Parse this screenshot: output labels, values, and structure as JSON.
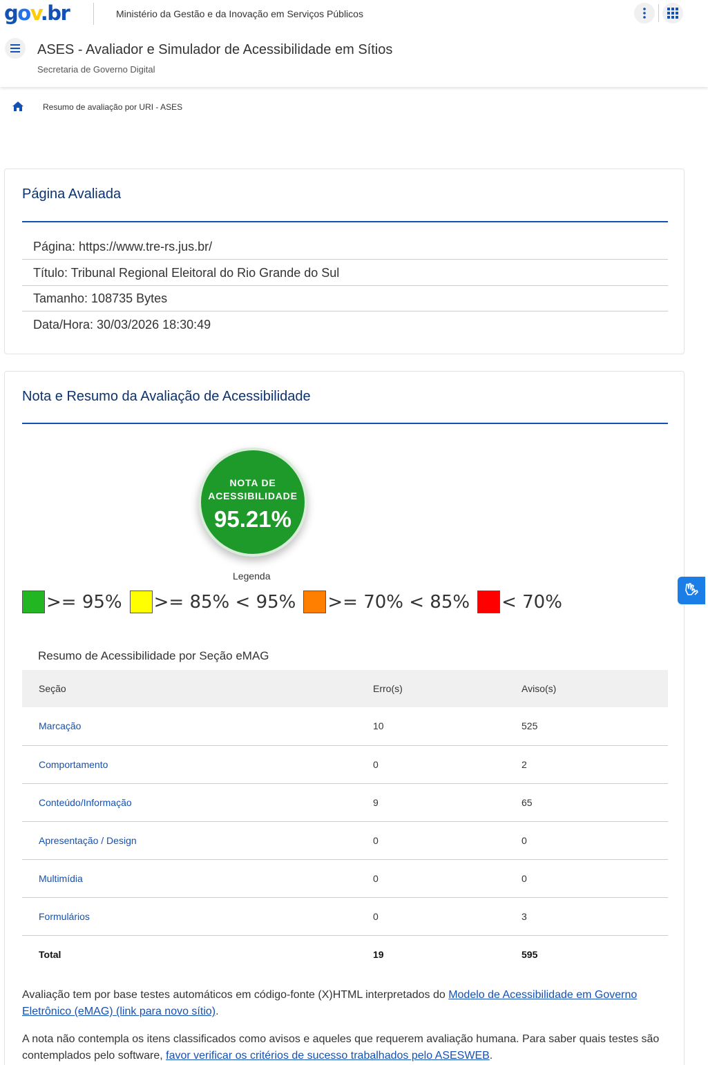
{
  "header": {
    "logo": {
      "g": "g",
      "o": "o",
      "v": "v",
      "dot": ".",
      "br": "br"
    },
    "org_name": "Ministério da Gestão e da Inovação em Serviços Públicos",
    "site_title": "ASES - Avaliador e Simulador de Acessibilidade em Sítios",
    "site_subtitle": "Secretaria de Governo Digital"
  },
  "breadcrumb": {
    "current": "Resumo de avaliação por URI - ASES"
  },
  "evaluated_page": {
    "title": "Página Avaliada",
    "rows": [
      "Página: https://www.tre-rs.jus.br/",
      "Título: Tribunal Regional Eleitoral do Rio Grande do Sul",
      "Tamanho: 108735 Bytes",
      "Data/Hora: 30/03/2026 18:30:49"
    ]
  },
  "assessment": {
    "title": "Nota e Resumo da Avaliação de Acessibilidade",
    "score_label_line1": "NOTA DE",
    "score_label_line2": "ACESSIBILIDADE",
    "score_value": "95.21%",
    "legend_title": "Legenda",
    "legend": [
      {
        "label": ">= 95%",
        "color": "#22b722"
      },
      {
        "label": ">= 85% < 95%",
        "color": "#ffff00"
      },
      {
        "label": ">= 70% < 85%",
        "color": "#ff7f00"
      },
      {
        "label": "< 70%",
        "color": "#ff0000"
      }
    ],
    "summary_title": "Resumo de Acessibilidade por Seção eMAG",
    "columns": [
      "Seção",
      "Erro(s)",
      "Aviso(s)"
    ],
    "rows": [
      {
        "section": "Marcação",
        "errors": "10",
        "warnings": "525"
      },
      {
        "section": "Comportamento",
        "errors": "0",
        "warnings": "2"
      },
      {
        "section": "Conteúdo/Informação",
        "errors": "9",
        "warnings": "65"
      },
      {
        "section": "Apresentação / Design",
        "errors": "0",
        "warnings": "0"
      },
      {
        "section": "Multimídia",
        "errors": "0",
        "warnings": "0"
      },
      {
        "section": "Formulários",
        "errors": "0",
        "warnings": "3"
      }
    ],
    "total": {
      "label": "Total",
      "errors": "19",
      "warnings": "595"
    },
    "note1_text": "Avaliação tem por base testes automáticos em código-fonte (X)HTML interpretados do ",
    "note1_link": "Modelo de Acessibilidade em Governo Eletrônico (eMAG) (link para novo sítio)",
    "note1_end": ".",
    "note2_text": "A nota não contempla os itens classificados como avisos e aqueles que requerem avaliação humana. Para saber quais testes são contemplados pelo software, ",
    "note2_link": "favor verificar os critérios de sucesso trabalhados pelo ASESWEB",
    "note2_end": "."
  },
  "colors": {
    "primary": "#1351b4",
    "title_blue": "#0c326f",
    "score_green": "#1e9a2b",
    "vlibras_blue": "#1a7ee6"
  }
}
